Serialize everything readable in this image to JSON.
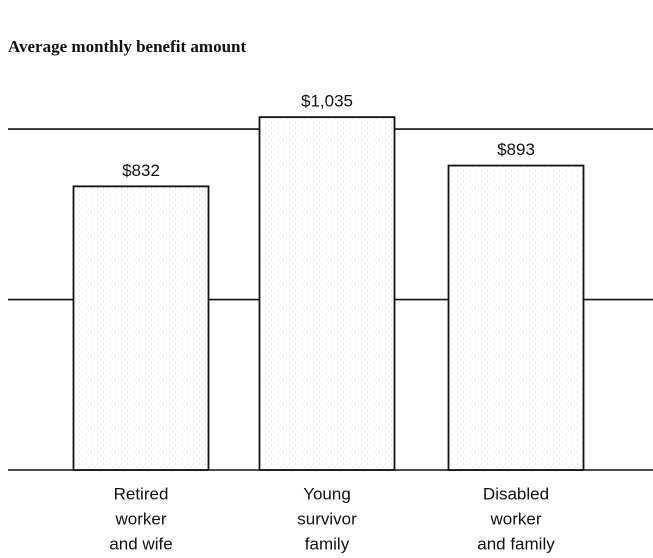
{
  "chart_data": {
    "type": "bar",
    "title": "Average monthly benefit amount",
    "categories": [
      [
        "Retired",
        "worker",
        "and wife"
      ],
      [
        "Young",
        "survivor",
        "family"
      ],
      [
        "Disabled",
        "worker",
        "and family"
      ]
    ],
    "values": [
      832,
      1035,
      893
    ],
    "value_labels": [
      "$832",
      "$1,035",
      "$893"
    ],
    "color": "#ffffff",
    "ylim": [
      0,
      1100
    ],
    "yticks": [
      0,
      500,
      1000
    ],
    "grid": true
  }
}
